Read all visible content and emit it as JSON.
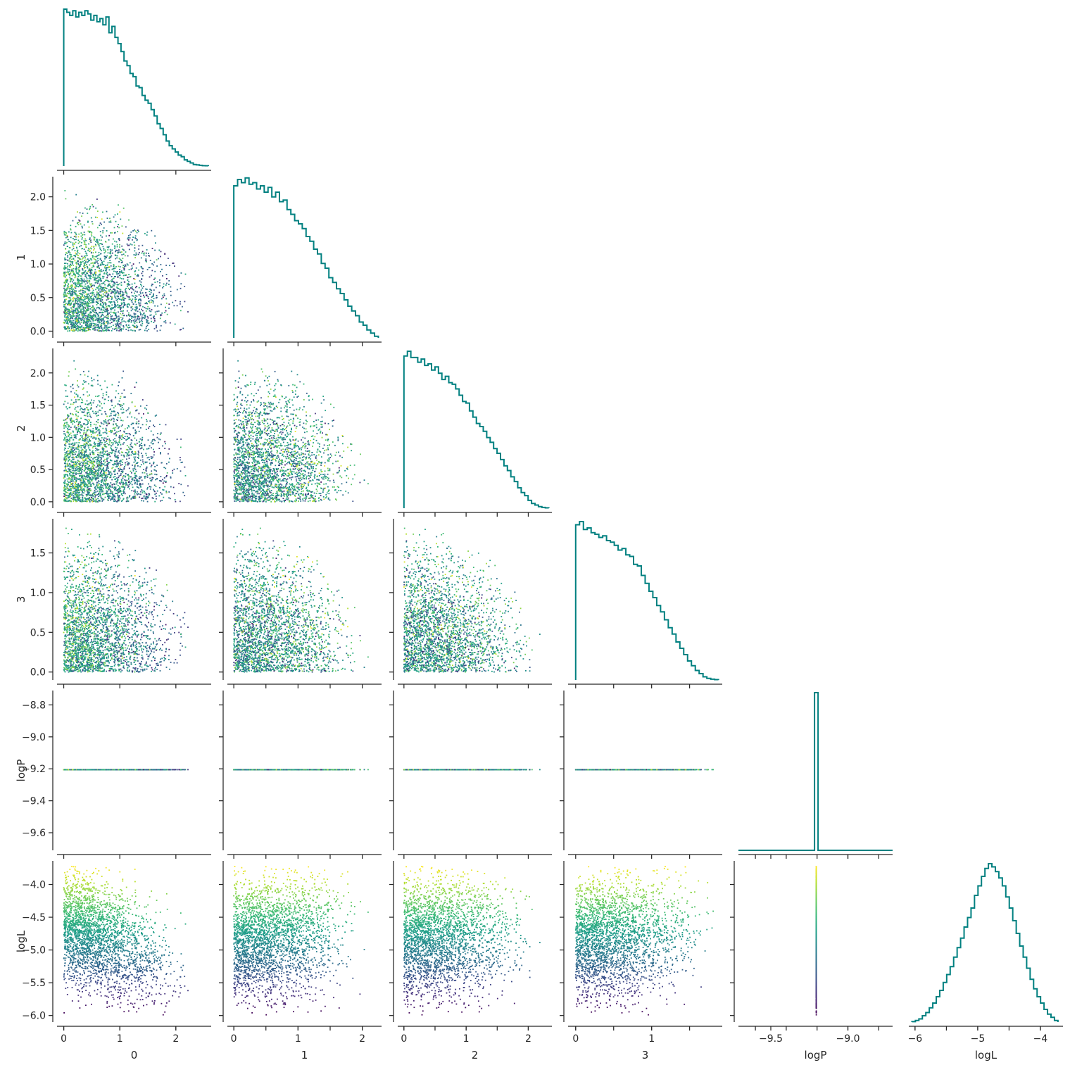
{
  "chart_data": {
    "type": "corner-pairplot",
    "variables": [
      "0",
      "1",
      "2",
      "3",
      "logP",
      "logL"
    ],
    "x_labels": [
      "0",
      "1",
      "2",
      "3",
      "logP",
      "logL"
    ],
    "y_labels": [
      "",
      "1",
      "2",
      "3",
      "logP",
      "logL"
    ],
    "ticks": {
      "0": [
        0,
        1,
        2
      ],
      "1": [
        0.0,
        0.5,
        1.0,
        1.5,
        2.0
      ],
      "2": [
        0.0,
        0.5,
        1.0,
        1.5,
        2.0
      ],
      "3": [
        0.0,
        0.5,
        1.0,
        1.5
      ],
      "logP": [
        -9.6,
        -9.4,
        -9.2,
        -9.0,
        -8.8
      ],
      "logL": [
        -6.0,
        -5.5,
        -5.0,
        -4.5,
        -4.0
      ]
    },
    "xticks_bottom": {
      "0": [
        "0",
        "1",
        "2"
      ],
      "1": [
        "0",
        "1",
        "2"
      ],
      "2": [
        "0",
        "1",
        "2"
      ],
      "3": [
        "0",
        "1"
      ],
      "logP": [
        "−9.5",
        "−9.0"
      ],
      "logL": [
        "−6",
        "−5",
        "−4"
      ]
    },
    "yticks_left": {
      "1": [
        "0.0",
        "0.5",
        "1.0",
        "1.5",
        "2.0"
      ],
      "2": [
        "0.0",
        "0.5",
        "1.0",
        "1.5",
        "2.0"
      ],
      "3": [
        "0.0",
        "0.5",
        "1.0",
        "1.5"
      ],
      "logP": [
        "−9.6",
        "−9.4",
        "−9.2",
        "−9.0",
        "−8.8"
      ],
      "logL": [
        "−6.0",
        "−5.5",
        "−5.0",
        "−4.5",
        "−4.0"
      ]
    },
    "ranges": {
      "0": [
        -0.12,
        2.63
      ],
      "1": [
        -0.1,
        2.3
      ],
      "2": [
        -0.1,
        2.38
      ],
      "3": [
        -0.1,
        1.93
      ],
      "logP": [
        -9.71,
        -8.71
      ],
      "logL": [
        -6.1,
        -3.64
      ]
    },
    "diagonal_histograms": {
      "0": [
        1.0,
        0.98,
        0.96,
        0.99,
        0.95,
        0.98,
        0.96,
        0.99,
        0.97,
        0.93,
        0.96,
        0.92,
        0.94,
        0.9,
        0.95,
        0.85,
        0.89,
        0.82,
        0.78,
        0.73,
        0.67,
        0.64,
        0.59,
        0.57,
        0.51,
        0.5,
        0.45,
        0.42,
        0.4,
        0.36,
        0.32,
        0.27,
        0.24,
        0.2,
        0.16,
        0.13,
        0.11,
        0.09,
        0.07,
        0.06,
        0.04,
        0.03,
        0.02,
        0.01,
        0.008,
        0.005,
        0.003,
        0.002
      ],
      "1": [
        0.96,
        1.0,
        0.98,
        1.01,
        0.97,
        0.98,
        0.94,
        0.96,
        0.92,
        0.95,
        0.89,
        0.92,
        0.86,
        0.87,
        0.81,
        0.78,
        0.74,
        0.72,
        0.69,
        0.64,
        0.61,
        0.56,
        0.53,
        0.47,
        0.44,
        0.38,
        0.35,
        0.31,
        0.28,
        0.24,
        0.2,
        0.17,
        0.14,
        0.1,
        0.08,
        0.05,
        0.03,
        0.01
      ],
      "2": [
        0.97,
        1.0,
        0.96,
        0.96,
        0.93,
        0.95,
        0.91,
        0.92,
        0.88,
        0.9,
        0.86,
        0.82,
        0.84,
        0.8,
        0.79,
        0.76,
        0.72,
        0.68,
        0.67,
        0.62,
        0.58,
        0.54,
        0.52,
        0.49,
        0.45,
        0.42,
        0.38,
        0.35,
        0.31,
        0.27,
        0.24,
        0.2,
        0.17,
        0.13,
        0.1,
        0.08,
        0.05,
        0.03,
        0.02,
        0.01,
        0.005,
        0.002
      ],
      "3": [
        0.98,
        1.0,
        0.95,
        0.96,
        0.93,
        0.92,
        0.9,
        0.91,
        0.88,
        0.87,
        0.85,
        0.82,
        0.83,
        0.79,
        0.78,
        0.73,
        0.72,
        0.66,
        0.61,
        0.56,
        0.52,
        0.47,
        0.43,
        0.38,
        0.33,
        0.29,
        0.24,
        0.2,
        0.16,
        0.12,
        0.09,
        0.06,
        0.04,
        0.02,
        0.01,
        0.005,
        0.002
      ],
      "logP": {
        "spike_at": -9.205,
        "width": 0.02
      },
      "logL": [
        0.003,
        0.01,
        0.02,
        0.04,
        0.06,
        0.09,
        0.12,
        0.16,
        0.2,
        0.25,
        0.3,
        0.35,
        0.41,
        0.47,
        0.53,
        0.6,
        0.66,
        0.72,
        0.8,
        0.86,
        0.92,
        0.97,
        1.0,
        0.98,
        0.95,
        0.91,
        0.86,
        0.79,
        0.72,
        0.64,
        0.56,
        0.48,
        0.41,
        0.34,
        0.27,
        0.21,
        0.16,
        0.12,
        0.08,
        0.05,
        0.03,
        0.01
      ]
    },
    "hist_color": "#008080",
    "scatter_colormap": "viridis",
    "scatter_color_by": "logL"
  }
}
